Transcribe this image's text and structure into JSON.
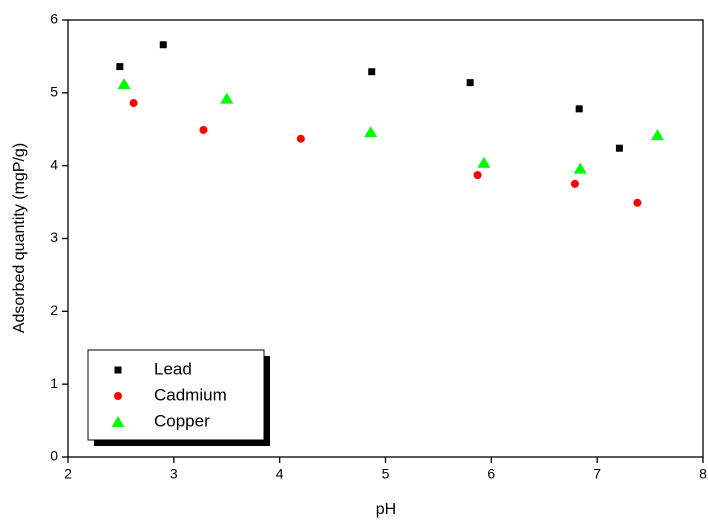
{
  "chart_data": {
    "type": "scatter",
    "x_label": "pH",
    "y_label": "Adsorbed quantity (mgP/g)",
    "xlim": [
      2,
      8
    ],
    "xticks": [
      2,
      3,
      4,
      5,
      6,
      7,
      8
    ],
    "ylim": [
      0,
      6
    ],
    "yticks": [
      0,
      1,
      2,
      3,
      4,
      5,
      6
    ],
    "legend": "lower left",
    "series": [
      {
        "name": "Lead",
        "color": "#000000",
        "marker": "square",
        "x": [
          2.49,
          2.9,
          4.87,
          5.8,
          6.83,
          7.21
        ],
        "values": [
          5.36,
          5.66,
          5.29,
          5.14,
          4.78,
          4.24
        ]
      },
      {
        "name": "Cadmium",
        "color": "#ff0000",
        "marker": "circle",
        "x": [
          2.62,
          3.28,
          4.2,
          5.87,
          6.79,
          7.38
        ],
        "values": [
          4.86,
          4.49,
          4.37,
          3.87,
          3.75,
          3.49
        ]
      },
      {
        "name": "Copper",
        "color": "#00ff00",
        "marker": "triangle",
        "x": [
          2.53,
          3.5,
          4.86,
          5.93,
          6.84,
          7.57
        ],
        "values": [
          5.12,
          4.92,
          4.46,
          4.04,
          3.96,
          4.42
        ]
      }
    ]
  }
}
